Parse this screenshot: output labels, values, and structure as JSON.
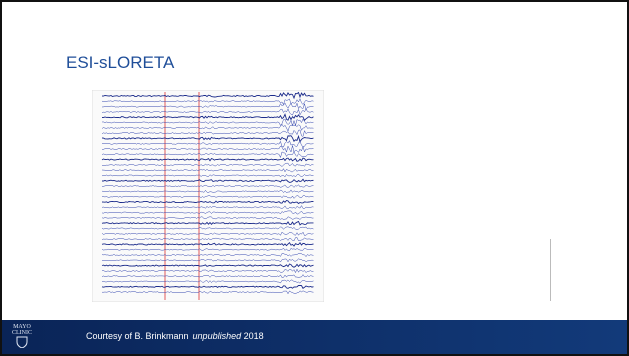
{
  "header": {
    "title": "ESI-sLORETA"
  },
  "logo": {
    "line1": "MAYO",
    "line2": "CLINIC"
  },
  "footer": {
    "credit_prefix": "Courtesy of B. Brinkmann",
    "credit_italic": "unpublished",
    "credit_suffix": "2018"
  }
}
